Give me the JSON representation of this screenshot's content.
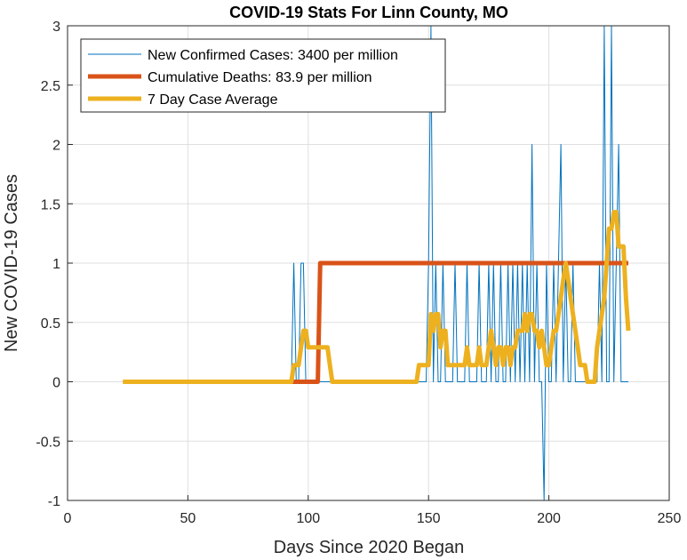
{
  "chart_data": {
    "type": "line",
    "title": "COVID-19 Stats For Linn County, MO",
    "xlabel": "Days Since 2020 Began",
    "ylabel": "New COVID-19 Cases",
    "xlim": [
      0,
      250
    ],
    "ylim": [
      -1,
      3
    ],
    "xticks": [
      0,
      50,
      100,
      150,
      200,
      250
    ],
    "yticks": [
      -1,
      -0.5,
      0,
      0.5,
      1,
      1.5,
      2,
      2.5,
      3
    ],
    "grid": true,
    "legend_position": "top-left",
    "series": [
      {
        "name": "New Confirmed Cases: 3400 per million",
        "color": "#0072BD",
        "line_width": "thin",
        "points": [
          [
            23,
            0
          ],
          [
            93,
            0
          ],
          [
            94,
            1
          ],
          [
            95,
            0
          ],
          [
            96,
            0
          ],
          [
            97,
            1
          ],
          [
            98,
            1
          ],
          [
            99,
            0
          ],
          [
            145,
            0
          ],
          [
            146,
            0
          ],
          [
            147,
            0
          ],
          [
            148,
            0
          ],
          [
            149,
            0
          ],
          [
            150,
            1
          ],
          [
            151,
            3
          ],
          [
            152,
            0
          ],
          [
            153,
            1
          ],
          [
            154,
            0
          ],
          [
            155,
            0
          ],
          [
            156,
            1
          ],
          [
            157,
            0
          ],
          [
            160,
            0
          ],
          [
            161,
            1
          ],
          [
            162,
            0
          ],
          [
            165,
            0
          ],
          [
            166,
            1
          ],
          [
            167,
            0
          ],
          [
            170,
            0
          ],
          [
            171,
            1
          ],
          [
            172,
            0
          ],
          [
            174,
            0
          ],
          [
            175,
            1
          ],
          [
            176,
            0
          ],
          [
            177,
            1
          ],
          [
            178,
            0
          ],
          [
            179,
            0
          ],
          [
            180,
            1
          ],
          [
            181,
            0
          ],
          [
            182,
            0
          ],
          [
            183,
            1
          ],
          [
            184,
            0
          ],
          [
            185,
            1
          ],
          [
            186,
            0
          ],
          [
            187,
            1
          ],
          [
            188,
            0
          ],
          [
            189,
            1
          ],
          [
            190,
            0
          ],
          [
            191,
            1
          ],
          [
            192,
            0
          ],
          [
            193,
            2
          ],
          [
            194,
            0
          ],
          [
            195,
            1
          ],
          [
            196,
            0
          ],
          [
            197,
            0
          ],
          [
            198,
            -1
          ],
          [
            199,
            1
          ],
          [
            200,
            0
          ],
          [
            201,
            0
          ],
          [
            202,
            1
          ],
          [
            203,
            0
          ],
          [
            204,
            1
          ],
          [
            205,
            2
          ],
          [
            206,
            0
          ],
          [
            207,
            1
          ],
          [
            208,
            0
          ],
          [
            209,
            0
          ],
          [
            210,
            1
          ],
          [
            211,
            0
          ],
          [
            220,
            0
          ],
          [
            221,
            1
          ],
          [
            222,
            0
          ],
          [
            223,
            3
          ],
          [
            224,
            0
          ],
          [
            225,
            0
          ],
          [
            226,
            3
          ],
          [
            227,
            0
          ],
          [
            228,
            1
          ],
          [
            229,
            2
          ],
          [
            230,
            0
          ],
          [
            232,
            0
          ],
          [
            233,
            0
          ]
        ]
      },
      {
        "name": "Cumulative Deaths: 83.9 per million",
        "color": "#D95319",
        "line_width": "thick",
        "points": [
          [
            93,
            0
          ],
          [
            104,
            0
          ],
          [
            105,
            1
          ],
          [
            233,
            1
          ]
        ]
      },
      {
        "name": "7 Day Case Average",
        "color": "#EDB120",
        "line_width": "thick",
        "points": [
          [
            23,
            0
          ],
          [
            93,
            0
          ],
          [
            94,
            0.14
          ],
          [
            96,
            0.14
          ],
          [
            97,
            0.29
          ],
          [
            98,
            0.43
          ],
          [
            99,
            0.43
          ],
          [
            100,
            0.29
          ],
          [
            101,
            0.29
          ],
          [
            108,
            0.29
          ],
          [
            109,
            0.14
          ],
          [
            110,
            0
          ],
          [
            111,
            0
          ],
          [
            144,
            0
          ],
          [
            145,
            0
          ],
          [
            146,
            0.14
          ],
          [
            150,
            0.14
          ],
          [
            151,
            0.57
          ],
          [
            152,
            0.43
          ],
          [
            153,
            0.57
          ],
          [
            154,
            0.57
          ],
          [
            155,
            0.29
          ],
          [
            156,
            0.43
          ],
          [
            157,
            0.43
          ],
          [
            158,
            0.14
          ],
          [
            159,
            0.14
          ],
          [
            165,
            0.14
          ],
          [
            166,
            0.29
          ],
          [
            167,
            0.14
          ],
          [
            170,
            0.14
          ],
          [
            171,
            0.29
          ],
          [
            172,
            0.14
          ],
          [
            174,
            0.14
          ],
          [
            175,
            0.29
          ],
          [
            176,
            0.43
          ],
          [
            177,
            0.29
          ],
          [
            178,
            0.14
          ],
          [
            179,
            0.29
          ],
          [
            180,
            0.29
          ],
          [
            181,
            0.14
          ],
          [
            182,
            0.29
          ],
          [
            183,
            0.29
          ],
          [
            184,
            0.14
          ],
          [
            185,
            0.29
          ],
          [
            186,
            0.29
          ],
          [
            187,
            0.43
          ],
          [
            188,
            0.43
          ],
          [
            189,
            0.43
          ],
          [
            190,
            0.57
          ],
          [
            191,
            0.43
          ],
          [
            192,
            0.57
          ],
          [
            193,
            0.57
          ],
          [
            194,
            0.43
          ],
          [
            195,
            0.43
          ],
          [
            196,
            0.29
          ],
          [
            197,
            0.43
          ],
          [
            198,
            0.29
          ],
          [
            199,
            0.14
          ],
          [
            200,
            0.14
          ],
          [
            201,
            0.29
          ],
          [
            202,
            0.43
          ],
          [
            203,
            0.43
          ],
          [
            204,
            0.57
          ],
          [
            205,
            0.71
          ],
          [
            206,
            0.86
          ],
          [
            207,
            1
          ],
          [
            208,
            0.86
          ],
          [
            209,
            0.71
          ],
          [
            210,
            0.57
          ],
          [
            211,
            0.43
          ],
          [
            212,
            0.29
          ],
          [
            213,
            0.14
          ],
          [
            214,
            0.14
          ],
          [
            215,
            0.14
          ],
          [
            216,
            0
          ],
          [
            217,
            0
          ],
          [
            219,
            0
          ],
          [
            220,
            0.29
          ],
          [
            221,
            0.43
          ],
          [
            222,
            0.57
          ],
          [
            223,
            0.71
          ],
          [
            224,
            1
          ],
          [
            225,
            1.29
          ],
          [
            226,
            1.29
          ],
          [
            227,
            1.43
          ],
          [
            228,
            1.43
          ],
          [
            229,
            1.14
          ],
          [
            230,
            1.14
          ],
          [
            231,
            1.14
          ],
          [
            232,
            0.71
          ],
          [
            233,
            0.43
          ]
        ]
      }
    ]
  }
}
